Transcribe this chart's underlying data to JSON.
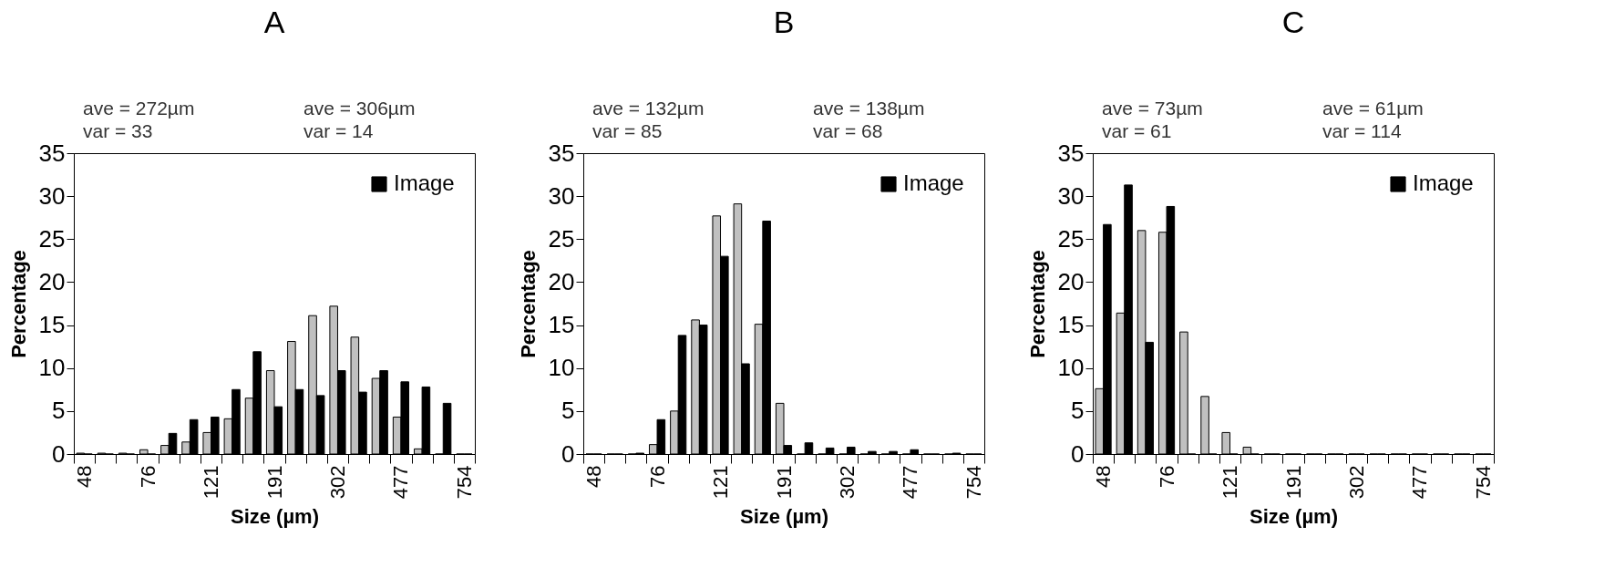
{
  "chart_data": [
    {
      "type": "bar",
      "title": "A",
      "xlabel": "Size (µm)",
      "ylabel": "Percentage",
      "categories": [
        "48",
        null,
        null,
        "76",
        null,
        null,
        "121",
        null,
        null,
        "191",
        null,
        null,
        "302",
        null,
        null,
        "477",
        null,
        null,
        "754"
      ],
      "ylim": [
        0,
        35
      ],
      "yticks": [
        0,
        5,
        10,
        15,
        20,
        25,
        30,
        35
      ],
      "legend": "top right",
      "series": [
        {
          "color": "#c0c0c0",
          "values": [
            0.1,
            0.1,
            0.1,
            0.5,
            1.0,
            1.4,
            2.5,
            4.1,
            6.5,
            9.7,
            13.1,
            16.1,
            17.2,
            13.6,
            8.8,
            4.3,
            0.6,
            0,
            0
          ]
        },
        {
          "name": "Image",
          "color": "#000000",
          "values": [
            0,
            0,
            0,
            0,
            2.4,
            4.0,
            4.3,
            7.5,
            11.9,
            5.5,
            7.5,
            6.8,
            9.7,
            7.2,
            9.7,
            8.4,
            7.8,
            5.9,
            0
          ]
        }
      ],
      "annotations": [
        "ave = 272µm",
        "var = 33",
        "ave = 306µm",
        "var = 14"
      ]
    },
    {
      "type": "bar",
      "title": "B",
      "xlabel": "Size (µm)",
      "ylabel": "Percentage",
      "categories": [
        "48",
        null,
        null,
        "76",
        null,
        null,
        "121",
        null,
        null,
        "191",
        null,
        null,
        "302",
        null,
        null,
        "477",
        null,
        null,
        "754"
      ],
      "ylim": [
        0,
        35
      ],
      "yticks": [
        0,
        5,
        10,
        15,
        20,
        25,
        30,
        35
      ],
      "legend": "top right",
      "series": [
        {
          "color": "#c0c0c0",
          "values": [
            0,
            0,
            0,
            1.1,
            5.0,
            15.6,
            27.7,
            29.1,
            15.1,
            5.9,
            0,
            0,
            0,
            0,
            0,
            0,
            0,
            0,
            0
          ]
        },
        {
          "name": "Image",
          "color": "#000000",
          "values": [
            0,
            0,
            0.1,
            4.0,
            13.8,
            15.0,
            23.0,
            10.5,
            27.1,
            1.0,
            1.3,
            0.7,
            0.8,
            0.3,
            0.3,
            0.5,
            0,
            0.1,
            0
          ]
        }
      ],
      "annotations": [
        "ave = 132µm",
        "var = 85",
        "ave = 138µm",
        "var = 68"
      ]
    },
    {
      "type": "bar",
      "title": "C",
      "xlabel": "Size (µm)",
      "ylabel": "Percentage",
      "categories": [
        "48",
        null,
        null,
        "76",
        null,
        null,
        "121",
        null,
        null,
        "191",
        null,
        null,
        "302",
        null,
        null,
        "477",
        null,
        null,
        "754"
      ],
      "ylim": [
        0,
        35
      ],
      "yticks": [
        0,
        5,
        10,
        15,
        20,
        25,
        30,
        35
      ],
      "legend": "top right",
      "series": [
        {
          "color": "#c0c0c0",
          "values": [
            7.6,
            16.4,
            26.0,
            25.8,
            14.2,
            6.7,
            2.5,
            0.8,
            0,
            0,
            0,
            0,
            0,
            0,
            0,
            0,
            0,
            0,
            0
          ]
        },
        {
          "name": "Image",
          "color": "#000000",
          "values": [
            26.7,
            31.3,
            13.0,
            28.8,
            0,
            0,
            0,
            0,
            0,
            0,
            0,
            0,
            0,
            0,
            0,
            0,
            0,
            0,
            0
          ]
        }
      ],
      "annotations": [
        "ave = 73µm",
        "var = 61",
        "ave = 61µm",
        "var = 114"
      ]
    }
  ]
}
